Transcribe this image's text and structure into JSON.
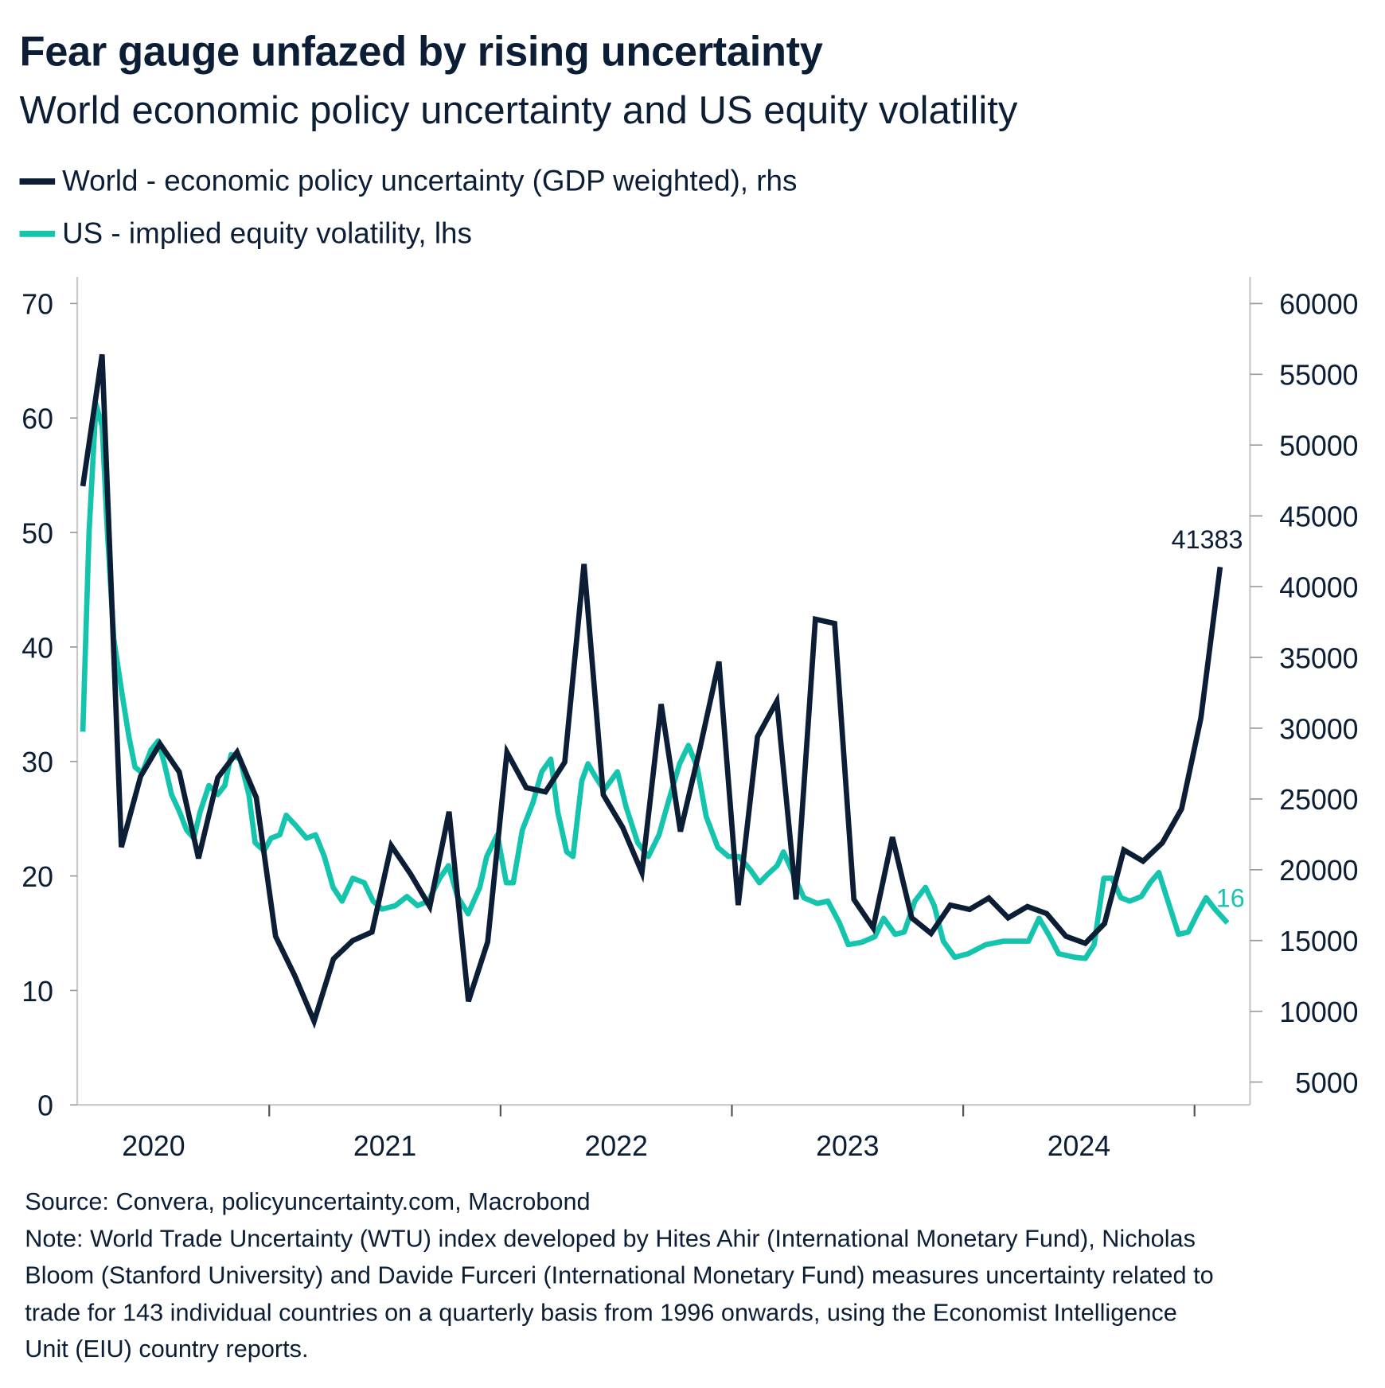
{
  "title": "Fear gauge unfazed by rising uncertainty",
  "subtitle": "World economic policy uncertainty and US equity volatility",
  "colors": {
    "world": "#0b1e35",
    "us": "#14c4ad",
    "axis": "#c8c8c8"
  },
  "chart_data": {
    "type": "line",
    "title": "Fear gauge unfazed by rising uncertainty",
    "legend_placement": "top-left",
    "grid": false,
    "x_ticks": [
      "2021",
      "2022",
      "2023",
      "2024",
      "2025"
    ],
    "x_tick_labels": [
      "2020",
      "2021",
      "2022",
      "2023",
      "2024"
    ],
    "xlim": [
      2020.17,
      2025.24
    ],
    "left_axis": {
      "ylim": [
        0,
        70
      ],
      "ticks": [
        "0",
        "10",
        "20",
        "30",
        "40",
        "50",
        "60",
        "70"
      ]
    },
    "right_axis": {
      "ylim": [
        0,
        61250
      ],
      "ticks": [
        "5000",
        "10000",
        "15000",
        "20000",
        "25000",
        "30000",
        "35000",
        "40000",
        "45000",
        "50000",
        "55000",
        "60000"
      ]
    },
    "series": [
      {
        "name": "World - economic policy uncertainty (GDP weighted), rhs",
        "axis": "right",
        "frequency": "monthly",
        "x": [
          "2020-03",
          "2020-04",
          "2020-05",
          "2020-06",
          "2020-07",
          "2020-08",
          "2020-09",
          "2020-10",
          "2020-11",
          "2020-12",
          "2021-01",
          "2021-02",
          "2021-03",
          "2021-04",
          "2021-05",
          "2021-06",
          "2021-07",
          "2021-08",
          "2021-09",
          "2021-10",
          "2021-11",
          "2021-12",
          "2022-01",
          "2022-02",
          "2022-03",
          "2022-04",
          "2022-05",
          "2022-06",
          "2022-07",
          "2022-08",
          "2022-09",
          "2022-10",
          "2022-11",
          "2022-12",
          "2023-01",
          "2023-02",
          "2023-03",
          "2023-04",
          "2023-05",
          "2023-06",
          "2023-07",
          "2023-08",
          "2023-09",
          "2023-10",
          "2023-11",
          "2023-12",
          "2024-01",
          "2024-02",
          "2024-03",
          "2024-04",
          "2024-05",
          "2024-06",
          "2024-07",
          "2024-08",
          "2024-09",
          "2024-10",
          "2024-11",
          "2024-12",
          "2025-01",
          "2025-02"
        ],
        "values": [
          47100,
          56400,
          21600,
          26600,
          28900,
          26900,
          20800,
          26500,
          28300,
          25100,
          15300,
          12500,
          9300,
          13700,
          15000,
          15600,
          21700,
          19700,
          17400,
          24100,
          10700,
          14900,
          28300,
          25800,
          25500,
          27600,
          41600,
          25300,
          23000,
          19800,
          31700,
          22700,
          28500,
          34700,
          17500,
          29400,
          31900,
          17900,
          37700,
          37400,
          17900,
          15900,
          22300,
          16600,
          15500,
          17500,
          17200,
          18000,
          16600,
          17400,
          16900,
          15300,
          14800,
          16200,
          21400,
          20600,
          21900,
          24300,
          30700,
          41383
        ],
        "last_value_label": "41383"
      },
      {
        "name": "US - implied equity volatility, lhs",
        "axis": "left",
        "x": [
          2020.194,
          2020.221,
          2020.251,
          2020.278,
          2020.298,
          2020.328,
          2020.363,
          2020.393,
          2020.42,
          2020.451,
          2020.489,
          2020.52,
          2020.547,
          2020.578,
          2020.612,
          2020.643,
          2020.674,
          2020.701,
          2020.739,
          2020.777,
          2020.808,
          2020.835,
          2020.874,
          2020.912,
          2020.939,
          2020.977,
          2021.008,
          2021.046,
          2021.073,
          2021.115,
          2021.161,
          2021.2,
          2021.238,
          2021.276,
          2021.315,
          2021.361,
          2021.411,
          2021.449,
          2021.488,
          2021.545,
          2021.595,
          2021.641,
          2021.687,
          2021.737,
          2021.775,
          2021.814,
          2021.86,
          2021.91,
          2021.94,
          2021.986,
          2022.025,
          2022.055,
          2022.094,
          2022.14,
          2022.178,
          2022.217,
          2022.247,
          2022.286,
          2022.313,
          2022.351,
          2022.378,
          2022.409,
          2022.447,
          2022.505,
          2022.543,
          2022.593,
          2022.639,
          2022.685,
          2022.724,
          2022.774,
          2022.812,
          2022.85,
          2022.889,
          2022.939,
          2022.985,
          2023.031,
          2023.081,
          2023.119,
          2023.158,
          2023.196,
          2023.223,
          2023.265,
          2023.311,
          2023.369,
          2023.415,
          2023.465,
          2023.503,
          2023.561,
          2023.618,
          2023.656,
          2023.706,
          2023.745,
          2023.791,
          2023.837,
          2023.875,
          2023.914,
          2023.964,
          2024.021,
          2024.098,
          2024.175,
          2024.232,
          2024.282,
          2024.328,
          2024.374,
          2024.413,
          2024.482,
          2024.528,
          2024.566,
          2024.608,
          2024.643,
          2024.681,
          2024.72,
          2024.77,
          2024.808,
          2024.846,
          2024.885,
          2024.931,
          2024.973,
          2025.012,
          2025.05,
          2025.088,
          2025.142
        ],
        "values": [
          32.6,
          50,
          61.2,
          59.3,
          50.8,
          40.7,
          36,
          32.2,
          29.5,
          29,
          31,
          31.8,
          29.8,
          27.1,
          25.6,
          24,
          23.3,
          25.6,
          27.9,
          27.1,
          27.9,
          30.6,
          30.2,
          27.1,
          22.9,
          22.2,
          23.3,
          23.6,
          25.3,
          24.4,
          23.3,
          23.6,
          21.7,
          19,
          17.8,
          19.8,
          19.4,
          17.8,
          17.1,
          17.4,
          18.2,
          17.4,
          17.8,
          19.8,
          20.9,
          18.2,
          16.7,
          19,
          21.7,
          23.6,
          19.4,
          19.4,
          24,
          26.4,
          29.1,
          30.2,
          25.6,
          22.1,
          21.7,
          28.3,
          29.8,
          28.7,
          27.5,
          29.1,
          26,
          22.9,
          21.7,
          23.6,
          26.4,
          29.8,
          31.4,
          29.5,
          25.2,
          22.5,
          21.7,
          21.7,
          20.5,
          19.4,
          20.2,
          20.9,
          22.1,
          20.2,
          18.1,
          17.6,
          17.8,
          15.9,
          14,
          14.2,
          14.7,
          16.3,
          14.9,
          15.1,
          17.8,
          19,
          17.4,
          14.3,
          12.9,
          13.2,
          14,
          14.3,
          14.3,
          14.3,
          16.3,
          14.7,
          13.2,
          12.9,
          12.8,
          14,
          19.8,
          19.8,
          18.1,
          17.8,
          18.2,
          19.4,
          20.3,
          17.8,
          14.9,
          15.1,
          16.7,
          18.1,
          17.1,
          15.9
        ],
        "last_value_label": "16"
      }
    ]
  },
  "legend": {
    "world": "World - economic policy uncertainty (GDP weighted), rhs",
    "us": "US - implied equity volatility, lhs"
  },
  "footer": {
    "source": "Source: Convera, policyuncertainty.com, Macrobond",
    "note_lines": [
      "Note: World Trade Uncertainty (WTU) index developed by Hites Ahir (International Monetary Fund), Nicholas",
      "Bloom (Stanford University) and Davide Furceri (International Monetary Fund) measures uncertainty related to",
      "trade for 143 individual countries on a quarterly basis from 1996 onwards, using the Economist Intelligence",
      "Unit (EIU) country reports."
    ]
  }
}
